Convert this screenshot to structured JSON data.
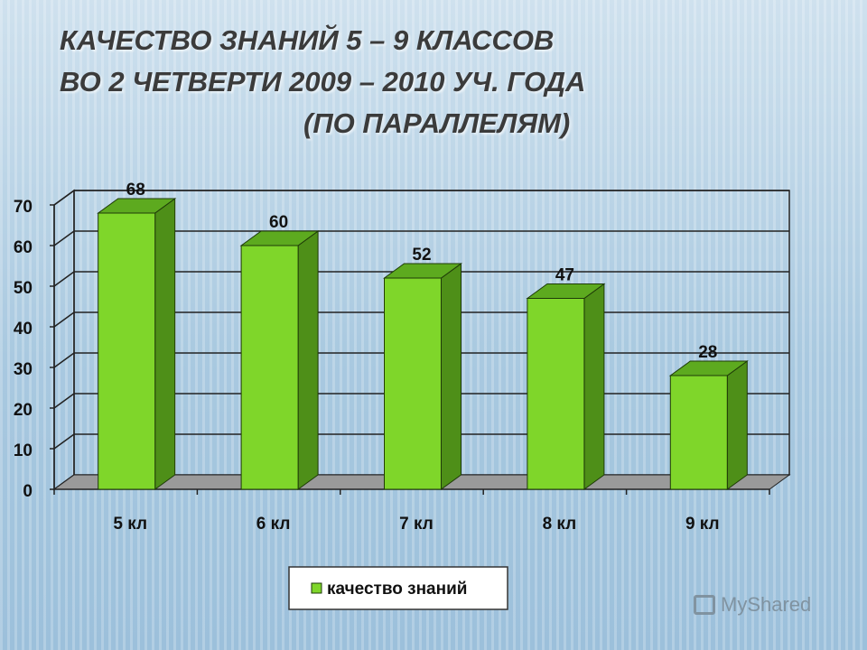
{
  "title": {
    "line1": "КАЧЕСТВО ЗНАНИЙ 5 – 9 КЛАССОВ",
    "line2": "ВО 2 ЧЕТВЕРТИ 2009 – 2010 УЧ. ГОДА",
    "line3": "(ПО ПАРАЛЛЕЛЯМ)"
  },
  "watermark": "MyShared",
  "colors": {
    "bar_front": "#7fd62a",
    "bar_side": "#4e8f18",
    "bar_top": "#5daa1f",
    "floor": "#9a9a9a"
  },
  "chart_data": {
    "type": "bar",
    "categories": [
      "5 кл",
      "6 кл",
      "7 кл",
      "8 кл",
      "9 кл"
    ],
    "series": [
      {
        "name": "качество знаний",
        "values": [
          68,
          60,
          52,
          47,
          28
        ]
      }
    ],
    "data_labels": [
      "68",
      "60",
      "52",
      "47",
      "28"
    ],
    "ylim": [
      0,
      70
    ],
    "yticks": [
      "0",
      "10",
      "20",
      "30",
      "40",
      "50",
      "60",
      "70"
    ],
    "grid": true,
    "legend": "bottom-center",
    "three_d": true
  }
}
